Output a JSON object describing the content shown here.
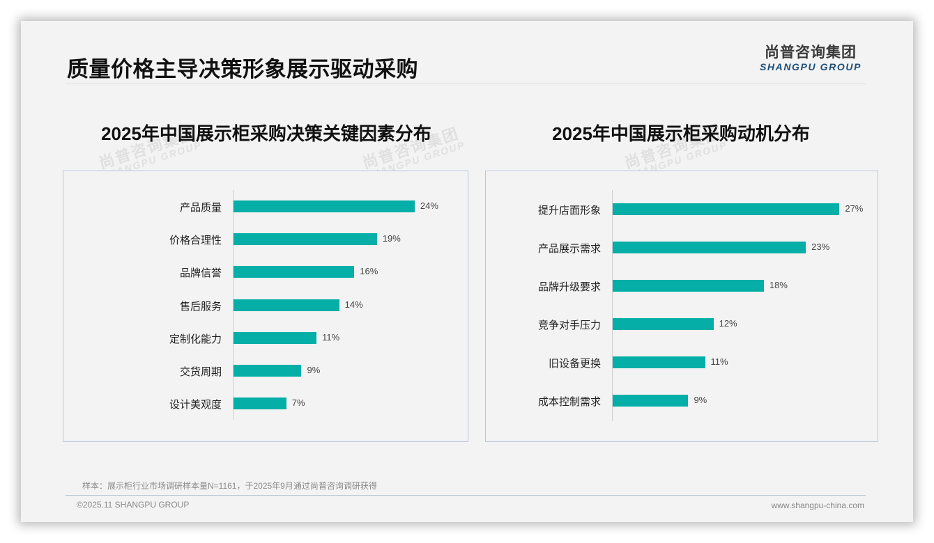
{
  "header": {
    "title": "质量价格主导决策形象展示驱动采购",
    "logo_cn": "尚普咨询集团",
    "logo_en": "SHANGPU GROUP"
  },
  "watermark": {
    "cn": "尚普咨询集团",
    "en": "SHANGPU GROUP"
  },
  "charts": [
    {
      "title": "2025年中国展示柜采购决策关键因素分布",
      "items": [
        {
          "label": "产品质量",
          "value": "24%"
        },
        {
          "label": "价格合理性",
          "value": "19%"
        },
        {
          "label": "品牌信誉",
          "value": "16%"
        },
        {
          "label": "售后服务",
          "value": "14%"
        },
        {
          "label": "定制化能力",
          "value": "11%"
        },
        {
          "label": "交货周期",
          "value": "9%"
        },
        {
          "label": "设计美观度",
          "value": "7%"
        }
      ]
    },
    {
      "title": "2025年中国展示柜采购动机分布",
      "items": [
        {
          "label": "提升店面形象",
          "value": "27%"
        },
        {
          "label": "产品展示需求",
          "value": "23%"
        },
        {
          "label": "品牌升级要求",
          "value": "18%"
        },
        {
          "label": "竞争对手压力",
          "value": "12%"
        },
        {
          "label": "旧设备更换",
          "value": "11%"
        },
        {
          "label": "成本控制需求",
          "value": "9%"
        }
      ]
    }
  ],
  "chart_data": [
    {
      "type": "bar",
      "orientation": "horizontal",
      "title": "2025年中国展示柜采购决策关键因素分布",
      "categories": [
        "产品质量",
        "价格合理性",
        "品牌信誉",
        "售后服务",
        "定制化能力",
        "交货周期",
        "设计美观度"
      ],
      "values": [
        24,
        19,
        16,
        14,
        11,
        9,
        7
      ],
      "unit": "%",
      "xlabel": "",
      "ylabel": "",
      "grid": false,
      "legend": false,
      "bar_color": "#05aea6",
      "data_labels": true
    },
    {
      "type": "bar",
      "orientation": "horizontal",
      "title": "2025年中国展示柜采购动机分布",
      "categories": [
        "提升店面形象",
        "产品展示需求",
        "品牌升级要求",
        "竞争对手压力",
        "旧设备更换",
        "成本控制需求"
      ],
      "values": [
        27,
        23,
        18,
        12,
        11,
        9
      ],
      "unit": "%",
      "xlabel": "",
      "ylabel": "",
      "grid": false,
      "legend": false,
      "bar_color": "#05aea6",
      "data_labels": true
    }
  ],
  "footer": {
    "note": "样本：展示柜行业市场调研样本量N=1161，于2025年9月通过尚普咨询调研获得",
    "copyright": "©2025.11 SHANGPU GROUP",
    "website": "www.shangpu-china.com"
  },
  "colors": {
    "bar": "#05aea6",
    "panel_border": "#b7c6d6",
    "logo_en": "#1d4e7a"
  }
}
